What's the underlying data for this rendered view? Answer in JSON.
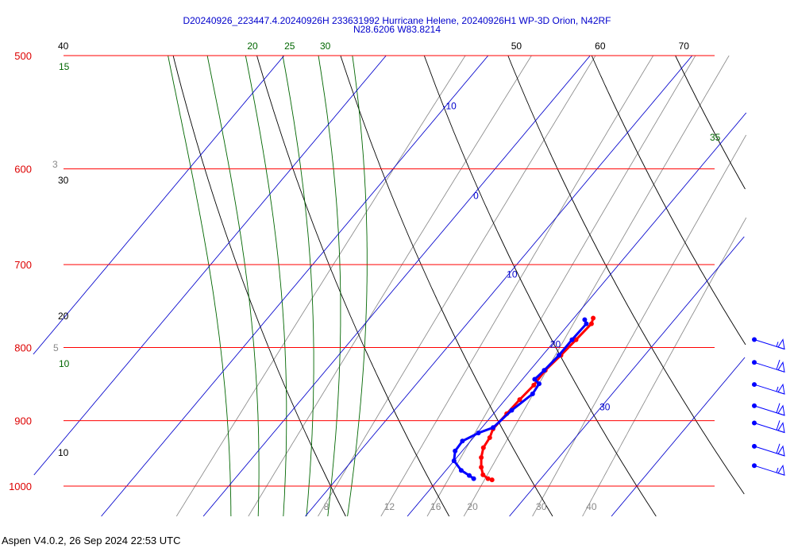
{
  "header": {
    "title_line1": "D20240926_223447.4.20240926H 233631992 Hurricane Helene, 20240926H1 WP-3D Orion, N42RF",
    "title_line2": "N28.6206 W83.8214"
  },
  "footer": {
    "version": "Aspen V4.0.2, 26 Sep 2024  22:53 UTC"
  },
  "colors": {
    "isobar": "#ff0000",
    "isotherm": "#0000cc",
    "dry_adiabat": "#000000",
    "moist_adiabat": "#006600",
    "mixing_ratio": "#888888",
    "temperature": "#ff0000",
    "dewpoint": "#0000ff",
    "wind": "#0000ff"
  },
  "chart_data": {
    "type": "skew-t",
    "pressure_axis": {
      "ticks": [
        500,
        600,
        700,
        800,
        900,
        1000
      ],
      "tick_labels": [
        "500",
        "600",
        "700",
        "800",
        "900",
        "1000"
      ],
      "scale": "log",
      "range": [
        500,
        1000
      ]
    },
    "isotherms": [
      {
        "t": -10,
        "label": "-10"
      },
      {
        "t": 0,
        "label": "0"
      },
      {
        "t": 10,
        "label": "10"
      },
      {
        "t": 20,
        "label": "20"
      },
      {
        "t": 30,
        "label": "30"
      },
      {
        "t": 40,
        "label": ""
      },
      {
        "t": -20,
        "label": ""
      },
      {
        "t": -30,
        "label": ""
      }
    ],
    "dry_adiabats": [
      {
        "theta": 10,
        "label": "10"
      },
      {
        "theta": 20,
        "label": "20"
      },
      {
        "theta": 30,
        "label": "30"
      },
      {
        "theta": 40,
        "label": "40"
      },
      {
        "theta": 50,
        "label": "50"
      },
      {
        "theta": 60,
        "label": "60"
      },
      {
        "theta": 70,
        "label": "70"
      }
    ],
    "moist_adiabats": [
      {
        "thetae": 10,
        "label": "10"
      },
      {
        "thetae": 15,
        "label": "15"
      },
      {
        "thetae": 20,
        "label": "20"
      },
      {
        "thetae": 25,
        "label": "25"
      },
      {
        "thetae": 30,
        "label": "30"
      },
      {
        "thetae": 35,
        "label": "35"
      }
    ],
    "mixing_ratio_lines": [
      {
        "w": 3,
        "label": "3"
      },
      {
        "w": 5,
        "label": "5"
      },
      {
        "w": 8,
        "label": "8"
      },
      {
        "w": 12,
        "label": "12"
      },
      {
        "w": 16,
        "label": "16"
      },
      {
        "w": 20,
        "label": "20"
      },
      {
        "w": 30,
        "label": "30"
      },
      {
        "w": 40,
        "label": "40"
      }
    ],
    "mixing_ratio_left_labels": [
      "3",
      "5"
    ],
    "mixing_ratio_bottom_labels": [
      "8",
      "12",
      "16",
      "20",
      "30",
      "40"
    ],
    "temperature_profile": [
      {
        "p": 763,
        "t": 21.9
      },
      {
        "p": 770,
        "t": 22.2
      },
      {
        "p": 790,
        "t": 22.0
      },
      {
        "p": 810,
        "t": 21.8
      },
      {
        "p": 830,
        "t": 21.5
      },
      {
        "p": 850,
        "t": 21.6
      },
      {
        "p": 870,
        "t": 21.4
      },
      {
        "p": 890,
        "t": 21.3
      },
      {
        "p": 912,
        "t": 21.2
      },
      {
        "p": 925,
        "t": 21.6
      },
      {
        "p": 940,
        "t": 21.8
      },
      {
        "p": 955,
        "t": 22.4
      },
      {
        "p": 970,
        "t": 23.2
      },
      {
        "p": 982,
        "t": 24.0
      },
      {
        "p": 988,
        "t": 24.8
      },
      {
        "p": 990,
        "t": 25.3
      }
    ],
    "dewpoint_profile": [
      {
        "p": 765,
        "t": 21.2
      },
      {
        "p": 770,
        "t": 21.7
      },
      {
        "p": 790,
        "t": 21.6
      },
      {
        "p": 810,
        "t": 21.6
      },
      {
        "p": 830,
        "t": 21.4
      },
      {
        "p": 842,
        "t": 21.2
      },
      {
        "p": 848,
        "t": 22.0
      },
      {
        "p": 862,
        "t": 22.2
      },
      {
        "p": 885,
        "t": 21.5
      },
      {
        "p": 910,
        "t": 21.1
      },
      {
        "p": 918,
        "t": 20.1
      },
      {
        "p": 930,
        "t": 19.2
      },
      {
        "p": 945,
        "t": 19.3
      },
      {
        "p": 960,
        "t": 20.0
      },
      {
        "p": 975,
        "t": 21.5
      },
      {
        "p": 983,
        "t": 22.7
      },
      {
        "p": 988,
        "t": 23.4
      }
    ],
    "wind_barbs": [
      {
        "p": 800,
        "speed_kt": 55,
        "dir": 0
      },
      {
        "p": 830,
        "speed_kt": 60,
        "dir": 0
      },
      {
        "p": 860,
        "speed_kt": 55,
        "dir": 0
      },
      {
        "p": 890,
        "speed_kt": 60,
        "dir": 0
      },
      {
        "p": 915,
        "speed_kt": 60,
        "dir": 0
      },
      {
        "p": 950,
        "speed_kt": 60,
        "dir": 0
      },
      {
        "p": 980,
        "speed_kt": 55,
        "dir": 0
      }
    ]
  }
}
